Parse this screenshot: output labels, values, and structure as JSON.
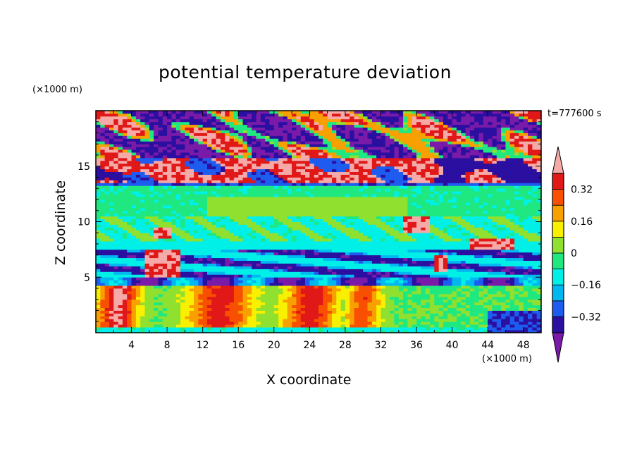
{
  "title": "potential temperature deviation",
  "time_label": "t=777600 s",
  "chart_data": {
    "type": "heatmap",
    "title": "potential temperature deviation",
    "xlabel": "X coordinate",
    "ylabel": "Z coordinate",
    "x_unit": "(×1000 m)",
    "y_unit": "(×1000 m)",
    "xlim": [
      0,
      50
    ],
    "ylim": [
      0,
      20
    ],
    "x_ticks": [
      4,
      8,
      12,
      16,
      20,
      24,
      28,
      32,
      36,
      40,
      44,
      48
    ],
    "y_ticks": [
      5,
      10,
      15
    ],
    "colorbar": {
      "levels": [
        -0.4,
        -0.32,
        -0.24,
        -0.16,
        -0.08,
        0,
        0.08,
        0.16,
        0.24,
        0.32,
        0.4
      ],
      "tick_labels": [
        "0.32",
        "0.16",
        "0",
        "−0.16",
        "−0.32"
      ],
      "tick_values": [
        0.32,
        0.16,
        0,
        -0.16,
        -0.32
      ],
      "colors": [
        "#7a1aa8",
        "#2a0fa0",
        "#1e5cf0",
        "#00b8f0",
        "#00f0e8",
        "#20e880",
        "#90e030",
        "#f8f000",
        "#f8a000",
        "#f85000",
        "#e01818",
        "#f5aaa8"
      ],
      "extend": "both"
    },
    "fields": {
      "layers": [
        {
          "z_range": [
            15.7,
            20
          ],
          "pattern": "mixed purple and pink",
          "dominant": -0.4,
          "secondary": 0.4
        },
        {
          "z_range": [
            13.6,
            15.7
          ],
          "pattern": "pink band",
          "dominant": 0.4
        },
        {
          "z_range": [
            13.3,
            13.6
          ],
          "pattern": "dark blue line",
          "dominant": -0.3
        },
        {
          "z_range": [
            7.5,
            13.3
          ],
          "pattern": "green and cyan",
          "dominant": -0.05,
          "patch": {
            "x": [
              10,
              35
            ],
            "z": [
              10.5,
              12.3
            ],
            "value": 0.05
          }
        },
        {
          "z_range": [
            5.0,
            7.5
          ],
          "pattern": "dark blue / blue bands",
          "dominant": -0.3
        },
        {
          "z_range": [
            0,
            5.0
          ],
          "pattern": "warm plumes",
          "dominant": -0.1,
          "plumes": [
            {
              "x": 14,
              "value": 0.35
            },
            {
              "x": 24,
              "value": 0.35
            },
            {
              "x": 30,
              "value": 0.3
            },
            {
              "x": 2.5,
              "value": 0.4
            }
          ]
        }
      ]
    }
  }
}
